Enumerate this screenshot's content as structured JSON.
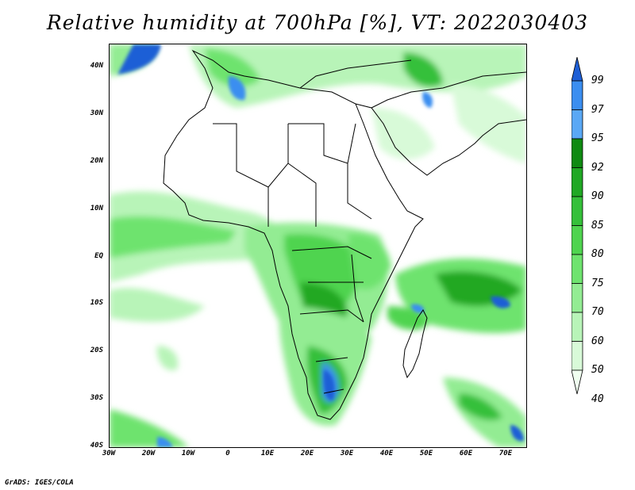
{
  "title": "Relative humidity at 700hPa [%], VT: 2022030403",
  "credit": "GrADS: IGES/COLA",
  "map": {
    "lat_ticks": [
      "40N",
      "30N",
      "20N",
      "10N",
      "EQ",
      "10S",
      "20S",
      "30S",
      "40S"
    ],
    "lon_ticks": [
      "30W",
      "20W",
      "10W",
      "0",
      "10E",
      "20E",
      "30E",
      "40E",
      "50E",
      "60E",
      "70E"
    ],
    "lon_range": [
      -30,
      75
    ],
    "lat_range": [
      -40,
      45
    ]
  },
  "colorbar": {
    "levels": [
      "99",
      "97",
      "95",
      "92",
      "90",
      "85",
      "80",
      "75",
      "70",
      "60",
      "50",
      "40"
    ],
    "colors": [
      "#1e5fd6",
      "#3b8ef0",
      "#5aa8f5",
      "#0f8a12",
      "#20a824",
      "#35c03a",
      "#4fd44f",
      "#6ee36e",
      "#93ec93",
      "#b8f4b8",
      "#d8fad8",
      "#f0fff0"
    ]
  },
  "colors": {
    "ocean_land": "#ffffff",
    "coast": "#000000"
  }
}
